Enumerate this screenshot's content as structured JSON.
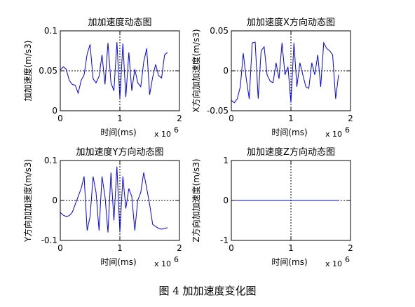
{
  "caption": "图 4  加加速度变化图",
  "chart_data": [
    {
      "type": "line",
      "title": "加加速度动态图",
      "xlabel": "时间(ms)",
      "ylabel": "加加速度(m/s3)",
      "x_exponent_label": "x 10",
      "x_exponent": "6",
      "xlim": [
        0,
        2
      ],
      "ylim": [
        0,
        0.1
      ],
      "xticks": [
        "0",
        "1",
        "2"
      ],
      "yticks": [
        "0",
        "0.05",
        "0.1"
      ],
      "ref_x": 1,
      "ref_y": 0.05,
      "series_color": "#0000ff",
      "x": [
        0,
        0.05,
        0.1,
        0.15,
        0.2,
        0.25,
        0.3,
        0.35,
        0.4,
        0.45,
        0.5,
        0.55,
        0.6,
        0.65,
        0.7,
        0.75,
        0.8,
        0.85,
        0.9,
        0.95,
        1.0,
        1.05,
        1.1,
        1.15,
        1.2,
        1.25,
        1.3,
        1.35,
        1.4,
        1.45,
        1.5,
        1.55,
        1.6,
        1.65,
        1.7,
        1.75,
        1.8
      ],
      "y": [
        0.051,
        0.055,
        0.052,
        0.038,
        0.033,
        0.032,
        0.022,
        0.038,
        0.045,
        0.071,
        0.083,
        0.04,
        0.035,
        0.043,
        0.07,
        0.033,
        0.085,
        0.035,
        0.025,
        0.086,
        0.015,
        0.084,
        0.017,
        0.073,
        0.025,
        0.052,
        0.035,
        0.03,
        0.061,
        0.078,
        0.02,
        0.042,
        0.058,
        0.044,
        0.041,
        0.07,
        0.073
      ]
    },
    {
      "type": "line",
      "title": "加加速度X方向动态图",
      "xlabel": "时间(ms)",
      "ylabel": "X方向加加速度(m/s3)",
      "x_exponent_label": "x 10",
      "x_exponent": "6",
      "xlim": [
        0,
        2
      ],
      "ylim": [
        -0.05,
        0.05
      ],
      "xticks": [
        "0",
        "1",
        "2"
      ],
      "yticks": [
        "-0.05",
        "0",
        "0.05"
      ],
      "ref_x": 1,
      "ref_y": 0,
      "series_color": "#0000ff",
      "x": [
        0,
        0.05,
        0.1,
        0.15,
        0.2,
        0.25,
        0.3,
        0.35,
        0.4,
        0.45,
        0.5,
        0.55,
        0.6,
        0.65,
        0.7,
        0.75,
        0.8,
        0.85,
        0.9,
        0.95,
        1.0,
        1.05,
        1.1,
        1.15,
        1.2,
        1.25,
        1.3,
        1.35,
        1.4,
        1.45,
        1.5,
        1.55,
        1.6,
        1.65,
        1.7,
        1.75,
        1.8
      ],
      "y": [
        -0.037,
        -0.04,
        -0.035,
        -0.02,
        0.022,
        -0.01,
        -0.035,
        0.035,
        0.036,
        -0.035,
        0.025,
        0.03,
        -0.005,
        -0.013,
        -0.015,
        0.01,
        -0.01,
        0.035,
        -0.005,
        0.005,
        -0.04,
        0.035,
        -0.02,
        0.01,
        -0.005,
        -0.02,
        -0.022,
        0.01,
        -0.005,
        0.02,
        -0.02,
        0.035,
        0.028,
        0.025,
        0.02,
        -0.035,
        -0.005
      ]
    },
    {
      "type": "line",
      "title": "加加速度Y方向动态图",
      "xlabel": "时间(ms)",
      "ylabel": "Y方向加加速度(m/s3)",
      "x_exponent_label": "x 10",
      "x_exponent": "6",
      "xlim": [
        0,
        2
      ],
      "ylim": [
        -0.1,
        0.1
      ],
      "xticks": [
        "0",
        "1",
        "2"
      ],
      "yticks": [
        "-0.1",
        "0",
        "0.1"
      ],
      "ref_x": 1,
      "ref_y": 0,
      "series_color": "#0000ff",
      "x": [
        0,
        0.05,
        0.1,
        0.15,
        0.2,
        0.25,
        0.3,
        0.35,
        0.4,
        0.45,
        0.5,
        0.55,
        0.6,
        0.65,
        0.7,
        0.75,
        0.8,
        0.85,
        0.9,
        0.95,
        1.0,
        1.05,
        1.1,
        1.15,
        1.2,
        1.25,
        1.3,
        1.35,
        1.4,
        1.45,
        1.5,
        1.55,
        1.6,
        1.65,
        1.7,
        1.75,
        1.8
      ],
      "y": [
        -0.03,
        -0.037,
        -0.04,
        -0.038,
        -0.03,
        -0.01,
        0.01,
        0.03,
        0.06,
        -0.075,
        -0.04,
        0.06,
        0.02,
        -0.075,
        0.06,
        0.01,
        -0.08,
        0.07,
        -0.05,
        0.085,
        -0.08,
        0.06,
        -0.02,
        0.03,
        0.01,
        -0.075,
        0.0,
        0.02,
        0.07,
        0.03,
        -0.01,
        -0.06,
        -0.065,
        -0.07,
        -0.072,
        -0.07,
        -0.068
      ]
    },
    {
      "type": "line",
      "title": "加加速度Z方向动态图",
      "xlabel": "时间(ms)",
      "ylabel": "Z方向加加速度(m/s3)",
      "x_exponent_label": "x 10",
      "x_exponent": "6",
      "xlim": [
        0,
        2
      ],
      "ylim": [
        -1,
        1
      ],
      "xticks": [
        "0",
        "1",
        "2"
      ],
      "yticks": [
        "-1",
        "0",
        "1"
      ],
      "ref_x": 1,
      "ref_y": 0,
      "series_color": "#0000ff",
      "x": [
        0,
        1.8
      ],
      "y": [
        0,
        0
      ]
    }
  ]
}
